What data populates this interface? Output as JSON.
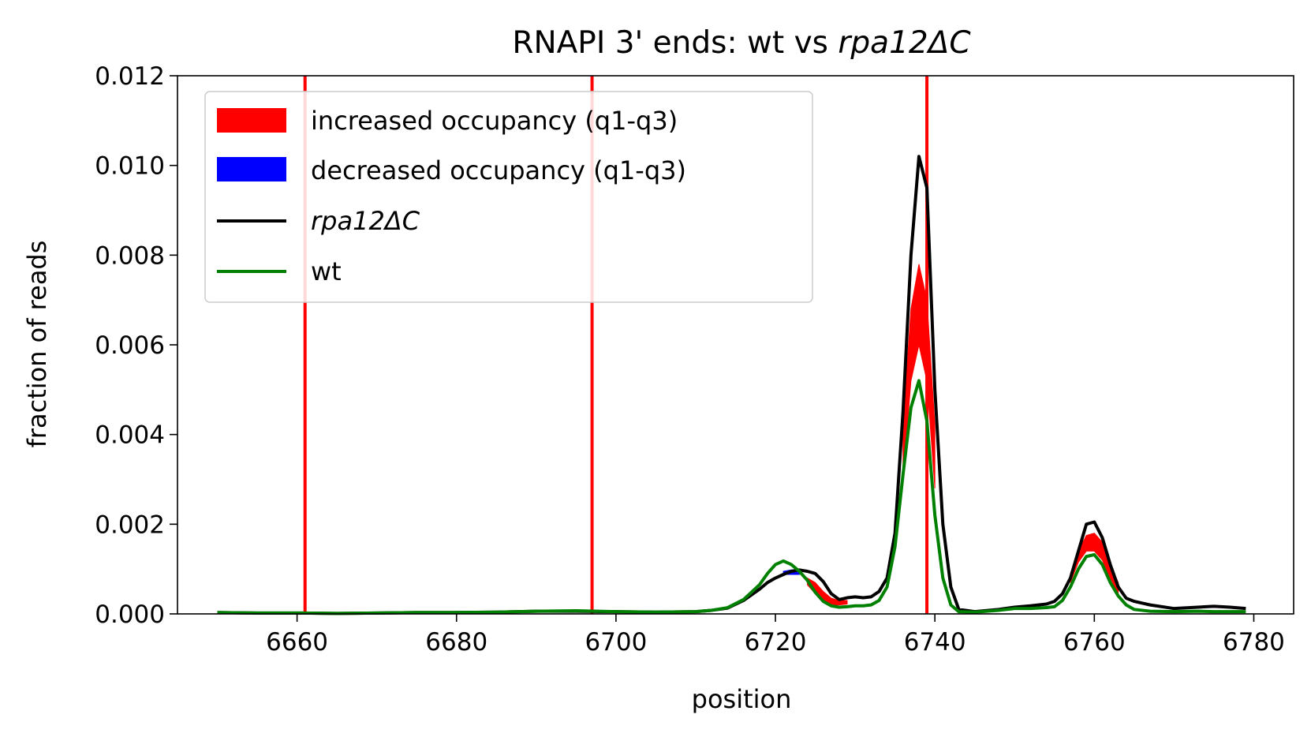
{
  "chart_data": {
    "type": "line",
    "title_main": "RNAPI 3' ends: wt vs ",
    "title_italic": "rpa",
    "title_tail": "12ΔC",
    "xlabel": "position",
    "ylabel": "fraction of reads",
    "xlim": [
      6645,
      6785
    ],
    "ylim": [
      0,
      0.012
    ],
    "xticks": [
      6660,
      6680,
      6700,
      6720,
      6740,
      6760,
      6780
    ],
    "yticks": [
      0.0,
      0.002,
      0.004,
      0.006,
      0.008,
      0.01,
      0.012
    ],
    "ytick_labels": [
      "0.000",
      "0.002",
      "0.004",
      "0.006",
      "0.008",
      "0.010",
      "0.012"
    ],
    "grid": false,
    "legend_position": "top-left",
    "colors": {
      "increased": "#ff0000",
      "decreased": "#0000ff",
      "mutant": "#000000",
      "wt": "#008000",
      "vline": "#ff0000"
    },
    "legend": [
      {
        "key": "increased",
        "kind": "patch",
        "label": "increased occupancy (q1-q3)"
      },
      {
        "key": "decreased",
        "kind": "patch",
        "label": "decreased occupancy (q1-q3)"
      },
      {
        "key": "mutant",
        "kind": "line",
        "label_italic": "rpa",
        "label_tail": "12ΔC"
      },
      {
        "key": "wt",
        "kind": "line",
        "label": "wt"
      }
    ],
    "vlines": [
      6661,
      6697,
      6739
    ],
    "x": [
      6650,
      6655,
      6660,
      6665,
      6670,
      6675,
      6680,
      6685,
      6690,
      6695,
      6700,
      6705,
      6710,
      6712,
      6714,
      6716,
      6718,
      6719,
      6720,
      6721,
      6722,
      6723,
      6724,
      6725,
      6726,
      6727,
      6728,
      6729,
      6730,
      6731,
      6732,
      6733,
      6734,
      6735,
      6736,
      6737,
      6738,
      6739,
      6740,
      6741,
      6742,
      6743,
      6745,
      6748,
      6750,
      6752,
      6754,
      6755,
      6756,
      6757,
      6758,
      6759,
      6760,
      6761,
      6762,
      6763,
      6764,
      6765,
      6767,
      6770,
      6773,
      6775,
      6777,
      6779
    ],
    "series": [
      {
        "key": "mutant",
        "values": [
          3e-05,
          2e-05,
          2e-05,
          1e-05,
          2e-05,
          3e-05,
          3e-05,
          4e-05,
          6e-05,
          6e-05,
          5e-05,
          4e-05,
          5e-05,
          8e-05,
          0.00013,
          0.0003,
          0.00055,
          0.0007,
          0.0008,
          0.00088,
          0.00095,
          0.00098,
          0.00095,
          0.0009,
          0.00072,
          0.00045,
          0.00032,
          0.00036,
          0.00038,
          0.00036,
          0.00038,
          0.0005,
          0.0008,
          0.0018,
          0.0045,
          0.008,
          0.0102,
          0.0095,
          0.005,
          0.002,
          0.0006,
          0.0001,
          5e-05,
          0.0001,
          0.00015,
          0.00018,
          0.00022,
          0.00028,
          0.00045,
          0.0008,
          0.0014,
          0.002,
          0.00205,
          0.0017,
          0.0011,
          0.0006,
          0.00035,
          0.00028,
          0.0002,
          0.00012,
          0.00015,
          0.00017,
          0.00015,
          0.00012
        ]
      },
      {
        "key": "wt",
        "values": [
          3e-05,
          2e-05,
          2e-05,
          1e-05,
          2e-05,
          3e-05,
          3e-05,
          4e-05,
          6e-05,
          7e-05,
          5e-05,
          4e-05,
          5e-05,
          8e-05,
          0.00014,
          0.00032,
          0.00065,
          0.0009,
          0.0011,
          0.00118,
          0.0011,
          0.00095,
          0.00075,
          0.00048,
          0.00028,
          0.00018,
          0.00015,
          0.00016,
          0.00018,
          0.00018,
          0.0002,
          0.0003,
          0.0006,
          0.0015,
          0.0031,
          0.0046,
          0.0052,
          0.0043,
          0.0022,
          0.0008,
          0.0002,
          5e-05,
          4e-05,
          8e-05,
          0.00012,
          0.00012,
          0.00014,
          0.00016,
          0.0003,
          0.0006,
          0.001,
          0.00128,
          0.00132,
          0.0011,
          0.0007,
          0.0004,
          0.0002,
          0.0001,
          6e-05,
          5e-05,
          6e-05,
          5e-05,
          5e-05,
          5e-05
        ]
      }
    ],
    "increased_bands": [
      {
        "x": [
          6724,
          6725,
          6726,
          6727,
          6728,
          6729
        ],
        "lower": [
          0.00065,
          0.00045,
          0.0003,
          0.0002,
          0.0002,
          0.00022
        ],
        "upper": [
          0.0008,
          0.0007,
          0.0005,
          0.00035,
          0.0003,
          0.0003
        ]
      },
      {
        "x": [
          6736,
          6737,
          6738,
          6739,
          6740
        ],
        "lower": [
          0.003,
          0.0052,
          0.006,
          0.0052,
          0.0028
        ],
        "upper": [
          0.0042,
          0.0068,
          0.0078,
          0.007,
          0.0042
        ]
      },
      {
        "x": [
          6757,
          6758,
          6759,
          6760,
          6761,
          6762,
          6763
        ],
        "lower": [
          0.0007,
          0.00115,
          0.0014,
          0.0014,
          0.0012,
          0.0008,
          0.00045
        ],
        "upper": [
          0.0009,
          0.0014,
          0.00175,
          0.0018,
          0.0016,
          0.0011,
          0.0007
        ]
      }
    ],
    "decreased_bands": [
      {
        "x": [
          6721,
          6722,
          6723
        ],
        "lower": [
          0.00088,
          0.00088,
          0.00088
        ],
        "upper": [
          0.00095,
          0.00098,
          0.00098
        ]
      }
    ]
  }
}
